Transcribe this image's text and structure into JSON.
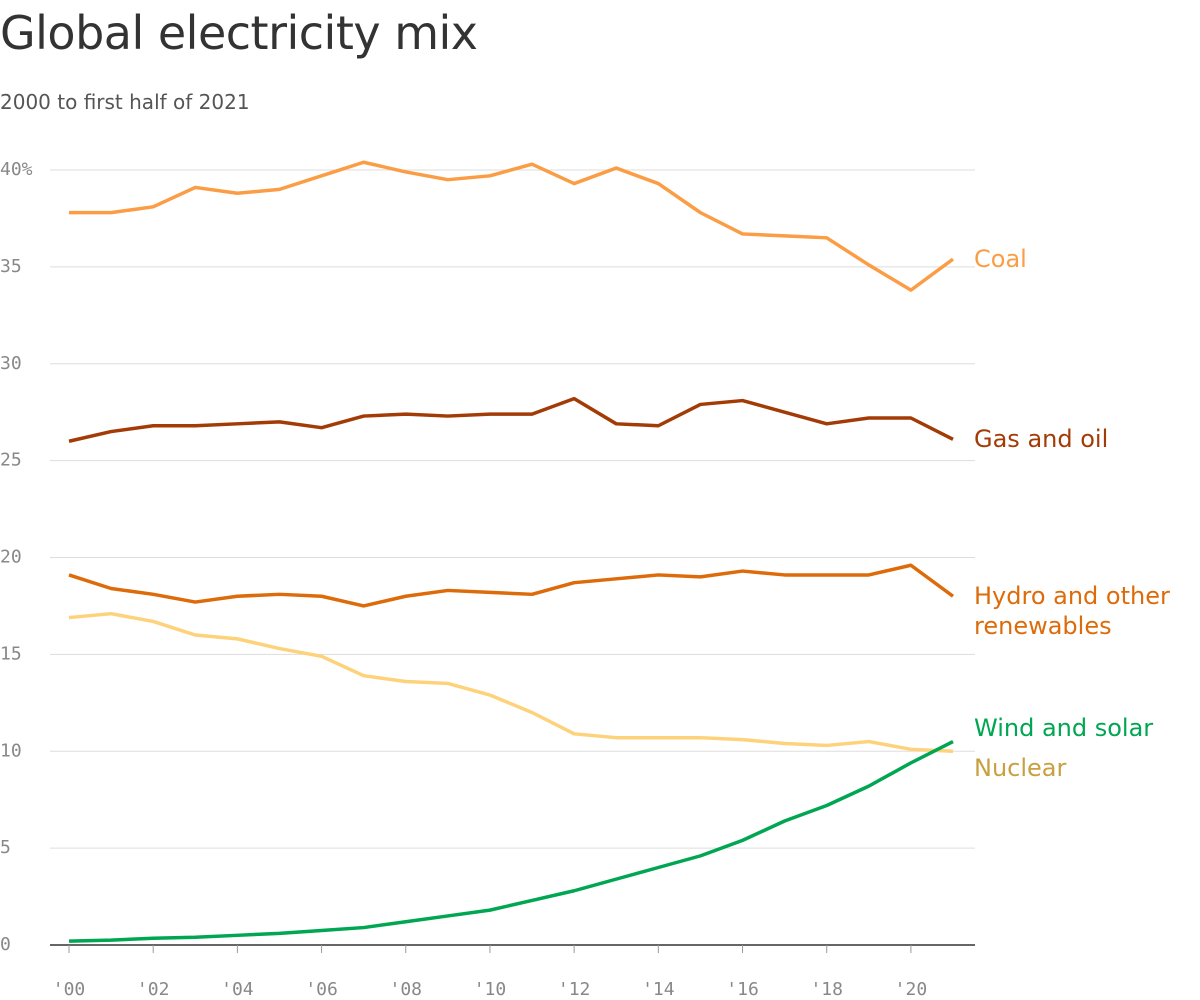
{
  "chart_data": {
    "type": "line",
    "title": "Global electricity mix",
    "subtitle": "2000 to first half of 2021",
    "x": [
      2000,
      2001,
      2002,
      2003,
      2004,
      2005,
      2006,
      2007,
      2008,
      2009,
      2010,
      2011,
      2012,
      2013,
      2014,
      2015,
      2016,
      2017,
      2018,
      2019,
      2020,
      2021
    ],
    "xlim": [
      2000,
      2021
    ],
    "xticks": [
      {
        "value": 2000,
        "label": "'00"
      },
      {
        "value": 2002,
        "label": "'02"
      },
      {
        "value": 2004,
        "label": "'04"
      },
      {
        "value": 2006,
        "label": "'06"
      },
      {
        "value": 2008,
        "label": "'08"
      },
      {
        "value": 2010,
        "label": "'10"
      },
      {
        "value": 2012,
        "label": "'12"
      },
      {
        "value": 2014,
        "label": "'14"
      },
      {
        "value": 2016,
        "label": "'16"
      },
      {
        "value": 2018,
        "label": "'18"
      },
      {
        "value": 2020,
        "label": "'20"
      }
    ],
    "ylim": [
      0,
      40
    ],
    "yticks": [
      0,
      5,
      10,
      15,
      20,
      25,
      30,
      35,
      {
        "value": 40,
        "label": "40%"
      }
    ],
    "grid": true,
    "series": [
      {
        "name": "Coal",
        "color": "#fb9d45",
        "label_color": "#fb9d45",
        "values": [
          37.8,
          37.8,
          38.1,
          39.1,
          38.8,
          39.0,
          39.7,
          40.4,
          39.9,
          39.5,
          39.7,
          40.3,
          39.3,
          40.1,
          39.3,
          37.8,
          36.7,
          36.6,
          36.5,
          35.1,
          33.8,
          35.4
        ]
      },
      {
        "name": "Gas and oil",
        "color": "#a33b07",
        "label_color": "#a33b07",
        "values": [
          26.0,
          26.5,
          26.8,
          26.8,
          26.9,
          27.0,
          26.7,
          27.3,
          27.4,
          27.3,
          27.4,
          27.4,
          28.2,
          26.9,
          26.8,
          27.9,
          28.1,
          27.5,
          26.9,
          27.2,
          27.2,
          26.1
        ]
      },
      {
        "name": "Hydro and other renewables",
        "color": "#dd6b0a",
        "label_color": "#dd6b0a",
        "values": [
          19.1,
          18.4,
          18.1,
          17.7,
          18.0,
          18.1,
          18.0,
          17.5,
          18.0,
          18.3,
          18.2,
          18.1,
          18.7,
          18.9,
          19.1,
          19.0,
          19.3,
          19.1,
          19.1,
          19.1,
          19.6,
          18.0
        ]
      },
      {
        "name": "Nuclear",
        "color": "#fdd27a",
        "label_color": "#c9a040",
        "values": [
          16.9,
          17.1,
          16.7,
          16.0,
          15.8,
          15.3,
          14.9,
          13.9,
          13.6,
          13.5,
          12.9,
          12.0,
          10.9,
          10.7,
          10.7,
          10.7,
          10.6,
          10.4,
          10.3,
          10.5,
          10.1,
          10.0
        ]
      },
      {
        "name": "Wind and solar",
        "color": "#00a651",
        "label_color": "#00a651",
        "values": [
          0.2,
          0.25,
          0.35,
          0.4,
          0.5,
          0.6,
          0.75,
          0.9,
          1.2,
          1.5,
          1.8,
          2.3,
          2.8,
          3.4,
          4.0,
          4.6,
          5.4,
          6.4,
          7.2,
          8.2,
          9.4,
          10.5
        ]
      }
    ]
  }
}
